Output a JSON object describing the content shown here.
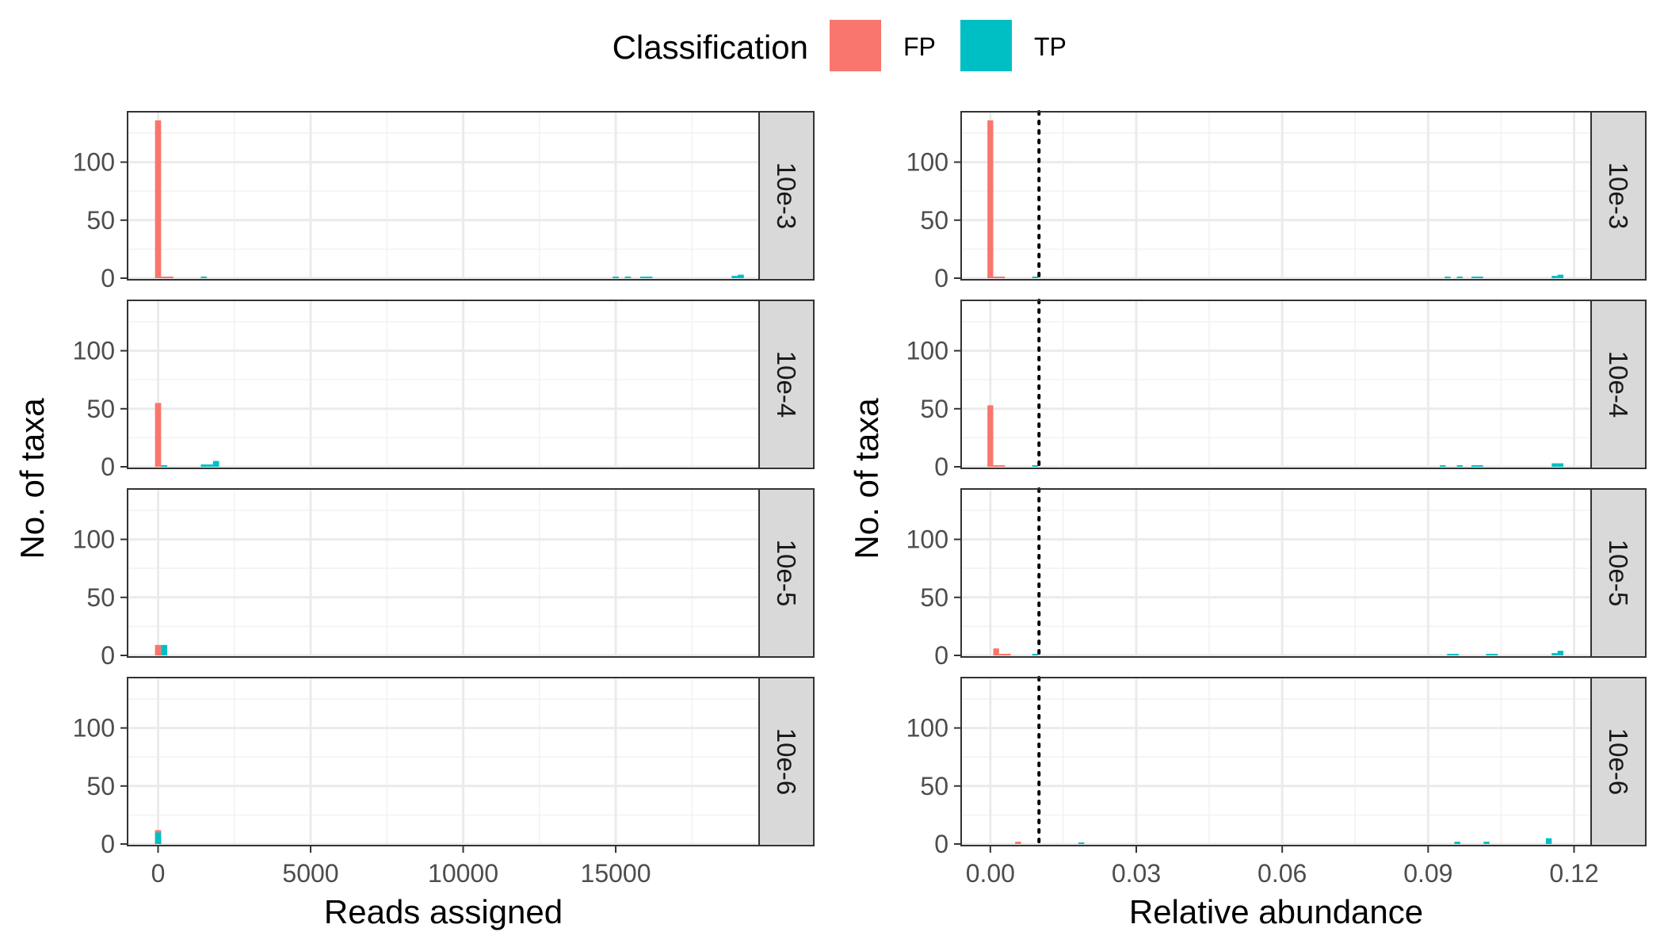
{
  "legend": {
    "title": "Classification",
    "items": [
      {
        "label": "FP",
        "color": "#F8766D"
      },
      {
        "label": "TP",
        "color": "#00BFC4"
      }
    ]
  },
  "chart_data": [
    {
      "type": "bar",
      "subtype": "faceted-histogram",
      "xlabel": "Reads assigned",
      "ylabel": "No. of taxa",
      "xlim": [
        -1000,
        19700
      ],
      "ylim": [
        0,
        140
      ],
      "xticks": [
        0,
        5000,
        10000,
        15000
      ],
      "xtick_labels": [
        "0",
        "5000",
        "10000",
        "15000"
      ],
      "yticks": [
        0,
        50,
        100
      ],
      "grid": true,
      "bin_width": 200,
      "panels": [
        {
          "label": "10e-3",
          "series": [
            {
              "name": "FP",
              "bins": [
                {
                  "x": 0,
                  "count": 136
                },
                {
                  "x": 200,
                  "count": 1
                },
                {
                  "x": 400,
                  "count": 1
                }
              ]
            },
            {
              "name": "TP",
              "bins": [
                {
                  "x": 1500,
                  "count": 1
                },
                {
                  "x": 15000,
                  "count": 1
                },
                {
                  "x": 15400,
                  "count": 1
                },
                {
                  "x": 15900,
                  "count": 1
                },
                {
                  "x": 16100,
                  "count": 1
                },
                {
                  "x": 18900,
                  "count": 2
                },
                {
                  "x": 19100,
                  "count": 3
                }
              ]
            }
          ]
        },
        {
          "label": "10e-4",
          "series": [
            {
              "name": "FP",
              "bins": [
                {
                  "x": 0,
                  "count": 55
                },
                {
                  "x": 200,
                  "count": 1
                }
              ]
            },
            {
              "name": "TP",
              "bins": [
                {
                  "x": 200,
                  "count": 1
                },
                {
                  "x": 1500,
                  "count": 2
                },
                {
                  "x": 1700,
                  "count": 2
                },
                {
                  "x": 1900,
                  "count": 5
                }
              ]
            }
          ]
        },
        {
          "label": "10e-5",
          "series": [
            {
              "name": "FP",
              "bins": [
                {
                  "x": 0,
                  "count": 9
                }
              ]
            },
            {
              "name": "TP",
              "bins": [
                {
                  "x": 200,
                  "count": 9
                }
              ]
            }
          ]
        },
        {
          "label": "10e-6",
          "series": [
            {
              "name": "FP",
              "bins": [
                {
                  "x": 0,
                  "count": 12
                }
              ]
            },
            {
              "name": "TP",
              "bins": [
                {
                  "x": 0,
                  "count": 10
                }
              ]
            }
          ]
        }
      ]
    },
    {
      "type": "bar",
      "subtype": "faceted-histogram",
      "xlabel": "Relative abundance",
      "ylabel": "No. of taxa",
      "xlim": [
        -0.006,
        0.1235
      ],
      "ylim": [
        0,
        140
      ],
      "xticks": [
        0.0,
        0.03,
        0.06,
        0.09,
        0.12
      ],
      "xtick_labels": [
        "0.00",
        "0.03",
        "0.06",
        "0.09",
        "0.12"
      ],
      "yticks": [
        0,
        50,
        100
      ],
      "grid": true,
      "bin_width": 0.0012,
      "reference_line": {
        "x": 0.01,
        "style": "dotted"
      },
      "panels": [
        {
          "label": "10e-3",
          "series": [
            {
              "name": "FP",
              "bins": [
                {
                  "x": 0.0,
                  "count": 136
                },
                {
                  "x": 0.0012,
                  "count": 1
                },
                {
                  "x": 0.0024,
                  "count": 1
                }
              ]
            },
            {
              "name": "TP",
              "bins": [
                {
                  "x": 0.0092,
                  "count": 1
                },
                {
                  "x": 0.094,
                  "count": 1
                },
                {
                  "x": 0.0965,
                  "count": 1
                },
                {
                  "x": 0.0995,
                  "count": 1
                },
                {
                  "x": 0.1007,
                  "count": 1
                },
                {
                  "x": 0.116,
                  "count": 2
                },
                {
                  "x": 0.1172,
                  "count": 3
                }
              ]
            }
          ]
        },
        {
          "label": "10e-4",
          "series": [
            {
              "name": "FP",
              "bins": [
                {
                  "x": 0.0,
                  "count": 53
                },
                {
                  "x": 0.0012,
                  "count": 1
                },
                {
                  "x": 0.0024,
                  "count": 1
                }
              ]
            },
            {
              "name": "TP",
              "bins": [
                {
                  "x": 0.0092,
                  "count": 1
                },
                {
                  "x": 0.093,
                  "count": 1
                },
                {
                  "x": 0.0965,
                  "count": 1
                },
                {
                  "x": 0.0995,
                  "count": 1
                },
                {
                  "x": 0.1007,
                  "count": 1
                },
                {
                  "x": 0.116,
                  "count": 3
                },
                {
                  "x": 0.1172,
                  "count": 3
                }
              ]
            }
          ]
        },
        {
          "label": "10e-5",
          "series": [
            {
              "name": "FP",
              "bins": [
                {
                  "x": 0.0012,
                  "count": 6
                },
                {
                  "x": 0.0024,
                  "count": 1
                },
                {
                  "x": 0.0036,
                  "count": 1
                }
              ]
            },
            {
              "name": "TP",
              "bins": [
                {
                  "x": 0.0092,
                  "count": 1
                },
                {
                  "x": 0.0945,
                  "count": 1
                },
                {
                  "x": 0.0957,
                  "count": 1
                },
                {
                  "x": 0.1025,
                  "count": 1
                },
                {
                  "x": 0.1037,
                  "count": 1
                },
                {
                  "x": 0.116,
                  "count": 2
                },
                {
                  "x": 0.1172,
                  "count": 4
                }
              ]
            }
          ]
        },
        {
          "label": "10e-6",
          "series": [
            {
              "name": "FP",
              "bins": [
                {
                  "x": 0.0057,
                  "count": 2
                }
              ]
            },
            {
              "name": "TP",
              "bins": [
                {
                  "x": 0.0187,
                  "count": 1
                },
                {
                  "x": 0.096,
                  "count": 2
                },
                {
                  "x": 0.102,
                  "count": 2
                },
                {
                  "x": 0.1148,
                  "count": 5
                }
              ]
            }
          ]
        }
      ]
    }
  ]
}
